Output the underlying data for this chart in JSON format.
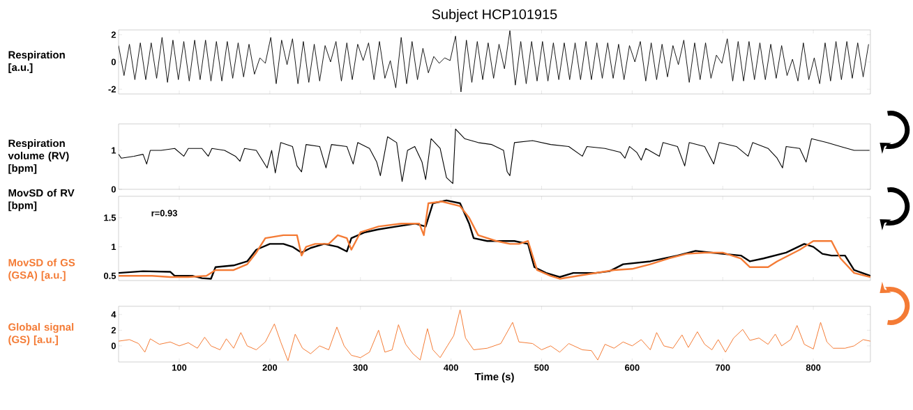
{
  "chart_data": [
    {
      "type": "line",
      "title": "Subject HCP101915",
      "ylabel": "Respiration [a.u.]",
      "color": "#000000",
      "x": [
        33,
        39,
        45,
        51,
        57,
        63,
        69,
        75,
        81,
        87,
        93,
        99,
        105,
        111,
        117,
        123,
        129,
        135,
        141,
        147,
        153,
        159,
        165,
        171,
        177,
        183,
        189,
        195,
        201,
        207,
        213,
        219,
        225,
        231,
        237,
        243,
        249,
        255,
        261,
        267,
        273,
        279,
        285,
        291,
        297,
        303,
        309,
        315,
        321,
        327,
        333,
        339,
        345,
        351,
        357,
        363,
        369,
        375,
        381,
        387,
        393,
        399,
        405,
        411,
        417,
        423,
        429,
        435,
        441,
        447,
        453,
        459,
        465,
        471,
        477,
        483,
        489,
        495,
        501,
        507,
        513,
        519,
        525,
        531,
        537,
        543,
        549,
        555,
        561,
        567,
        573,
        579,
        585,
        591,
        597,
        603,
        609,
        615,
        621,
        627,
        633,
        639,
        645,
        651,
        657,
        663,
        669,
        675,
        681,
        687,
        693,
        699,
        705,
        711,
        717,
        723,
        729,
        735,
        741,
        747,
        753,
        759,
        765,
        771,
        777,
        783,
        789,
        795,
        801,
        807,
        813,
        819,
        825,
        831,
        837,
        843,
        849,
        855,
        861
      ],
      "values": [
        1.2,
        -1.0,
        1.3,
        -1.3,
        1.4,
        -1.3,
        1.4,
        -1.2,
        1.8,
        -1.5,
        1.6,
        -1.3,
        1.5,
        -1.4,
        1.6,
        -1.3,
        1.6,
        -1.4,
        1.5,
        -1.4,
        1.5,
        -1.2,
        1.4,
        -1.1,
        1.3,
        -0.9,
        0.3,
        -0.1,
        1.8,
        -1.6,
        1.6,
        -0.2,
        1.7,
        -1.6,
        1.5,
        -1.5,
        1.3,
        -1.4,
        1.2,
        0.0,
        1.5,
        -1.4,
        1.4,
        -1.3,
        1.3,
        0.1,
        1.4,
        -1.3,
        1.5,
        -1.2,
        0.1,
        -1.9,
        1.8,
        -1.6,
        1.5,
        -1.3,
        1.0,
        -0.8,
        0.4,
        -0.1,
        0.3,
        0.1,
        1.9,
        -2.2,
        1.6,
        -1.5,
        1.5,
        -1.3,
        1.4,
        -1.2,
        1.3,
        -0.5,
        2.3,
        -1.7,
        1.5,
        -1.6,
        1.5,
        -1.4,
        1.5,
        -1.4,
        1.4,
        -1.3,
        1.4,
        -1.3,
        1.4,
        -1.3,
        1.5,
        -1.3,
        1.4,
        -1.2,
        1.4,
        -1.2,
        1.3,
        -1.3,
        1.2,
        0.0,
        1.5,
        -1.4,
        1.4,
        -1.3,
        1.3,
        -1.1,
        1.2,
        -0.2,
        1.6,
        -1.5,
        1.4,
        -1.3,
        1.4,
        -1.2,
        0.5,
        -0.1,
        1.7,
        -1.4,
        1.5,
        -1.4,
        1.5,
        -1.3,
        1.4,
        -1.3,
        1.3,
        -1.2,
        1.2,
        -1.0,
        0.2,
        -1.4,
        1.4,
        -1.3,
        0.3,
        -1.6,
        1.4,
        -1.4,
        1.5,
        -1.3,
        1.5,
        -1.2,
        1.4,
        -1.1,
        1.3
      ],
      "xlim": [
        33,
        863
      ],
      "ylim": [
        -2.35,
        2.35
      ],
      "xticks": [
        100,
        200,
        300,
        400,
        500,
        600,
        700,
        800
      ],
      "yticks": [
        -2,
        0,
        2
      ],
      "tick_labels": "y"
    },
    {
      "type": "line",
      "ylabel": "Respiration volume (RV) [bpm]",
      "color": "#000000",
      "x": [
        33,
        36,
        50,
        60,
        64,
        68,
        80,
        95,
        105,
        110,
        125,
        132,
        136,
        150,
        162,
        167,
        172,
        185,
        197,
        202,
        206,
        212,
        225,
        230,
        235,
        240,
        255,
        262,
        268,
        285,
        292,
        297,
        310,
        318,
        322,
        330,
        340,
        346,
        352,
        360,
        368,
        372,
        378,
        388,
        395,
        402,
        405,
        415,
        430,
        445,
        458,
        462,
        465,
        470,
        490,
        510,
        530,
        545,
        550,
        570,
        587,
        592,
        597,
        605,
        610,
        615,
        630,
        634,
        650,
        658,
        663,
        680,
        690,
        696,
        715,
        728,
        733,
        750,
        760,
        766,
        770,
        785,
        792,
        798,
        815,
        830,
        845,
        862
      ],
      "values": [
        0.9,
        0.8,
        0.85,
        0.9,
        0.65,
        1.0,
        1.0,
        1.05,
        0.85,
        1.05,
        1.05,
        0.85,
        1.05,
        1.0,
        0.85,
        0.72,
        1.05,
        1.0,
        0.55,
        1.0,
        0.42,
        1.2,
        1.1,
        0.6,
        0.45,
        1.15,
        1.1,
        0.55,
        1.15,
        1.1,
        0.65,
        1.2,
        1.05,
        0.7,
        0.35,
        1.35,
        1.2,
        0.2,
        1.0,
        1.1,
        0.7,
        0.25,
        1.3,
        1.05,
        0.3,
        0.15,
        1.55,
        1.3,
        1.2,
        1.15,
        1.0,
        0.45,
        0.35,
        1.2,
        1.25,
        1.15,
        1.1,
        0.85,
        1.1,
        1.05,
        0.95,
        0.8,
        1.1,
        0.95,
        0.75,
        1.05,
        0.85,
        1.2,
        1.1,
        0.6,
        1.2,
        1.1,
        0.65,
        1.2,
        1.1,
        0.85,
        1.2,
        1.05,
        0.8,
        0.55,
        1.1,
        1.05,
        0.7,
        1.3,
        1.2,
        1.1,
        1.0,
        1.0
      ],
      "xlim": [
        33,
        863
      ],
      "ylim": [
        0,
        1.68
      ],
      "xticks": [
        100,
        200,
        300,
        400,
        500,
        600,
        700,
        800
      ],
      "yticks": [
        0,
        1
      ],
      "tick_labels": "y"
    },
    {
      "type": "line",
      "annotations": [
        "r=0.93"
      ],
      "series": [
        {
          "name": "MovSD of RV [bpm]",
          "color": "#000000",
          "x": [
            33,
            60,
            90,
            95,
            115,
            125,
            135,
            140,
            160,
            175,
            185,
            200,
            215,
            225,
            235,
            245,
            260,
            275,
            285,
            290,
            305,
            320,
            340,
            360,
            372,
            380,
            395,
            410,
            420,
            425,
            440,
            470,
            485,
            492,
            505,
            520,
            535,
            560,
            575,
            590,
            620,
            650,
            670,
            700,
            720,
            730,
            745,
            770,
            790,
            800,
            810,
            820,
            835,
            845,
            863
          ],
          "values": [
            0.55,
            0.58,
            0.57,
            0.5,
            0.5,
            0.46,
            0.45,
            0.65,
            0.68,
            0.75,
            0.95,
            1.05,
            1.05,
            1.0,
            0.9,
            0.98,
            1.05,
            1.0,
            0.92,
            1.15,
            1.25,
            1.3,
            1.35,
            1.4,
            1.35,
            1.75,
            1.8,
            1.75,
            1.4,
            1.15,
            1.1,
            1.1,
            1.05,
            0.65,
            0.55,
            0.48,
            0.55,
            0.55,
            0.58,
            0.7,
            0.75,
            0.85,
            0.93,
            0.88,
            0.85,
            0.75,
            0.8,
            0.9,
            1.05,
            1.0,
            0.88,
            0.85,
            0.85,
            0.6,
            0.5
          ]
        },
        {
          "name": "MovSD of GS (GSA) [a.u.]",
          "color": "#f47b35",
          "x": [
            33,
            70,
            90,
            110,
            130,
            140,
            160,
            175,
            185,
            195,
            215,
            230,
            235,
            240,
            250,
            265,
            275,
            285,
            290,
            300,
            320,
            345,
            365,
            370,
            375,
            390,
            410,
            420,
            430,
            450,
            465,
            475,
            485,
            495,
            510,
            520,
            540,
            560,
            580,
            600,
            620,
            640,
            660,
            680,
            700,
            720,
            730,
            750,
            760,
            785,
            800,
            820,
            830,
            845,
            863
          ],
          "values": [
            0.5,
            0.5,
            0.48,
            0.48,
            0.5,
            0.6,
            0.6,
            0.7,
            0.9,
            1.15,
            1.2,
            1.2,
            0.85,
            1.0,
            1.05,
            1.05,
            1.2,
            1.15,
            0.95,
            1.25,
            1.35,
            1.4,
            1.4,
            1.2,
            1.75,
            1.78,
            1.7,
            1.5,
            1.2,
            1.1,
            1.05,
            1.05,
            1.1,
            0.6,
            0.5,
            0.45,
            0.5,
            0.55,
            0.6,
            0.62,
            0.7,
            0.8,
            0.88,
            0.9,
            0.9,
            0.8,
            0.65,
            0.65,
            0.75,
            0.95,
            1.1,
            1.1,
            0.8,
            0.55,
            0.48
          ]
        }
      ],
      "xlim": [
        33,
        863
      ],
      "ylim": [
        0.42,
        1.87
      ],
      "xticks": [
        100,
        200,
        300,
        400,
        500,
        600,
        700,
        800
      ],
      "yticks": [
        0.5,
        1,
        1.5
      ],
      "tick_labels": "y"
    },
    {
      "type": "line",
      "ylabel": "Global signal (GS) [a.u.]",
      "xlabel": "Time (s)",
      "color": "#f47b35",
      "x": [
        33,
        45,
        55,
        62,
        68,
        78,
        90,
        100,
        110,
        120,
        128,
        135,
        145,
        152,
        160,
        168,
        175,
        185,
        195,
        205,
        212,
        220,
        228,
        236,
        245,
        255,
        265,
        274,
        282,
        290,
        300,
        310,
        320,
        327,
        335,
        342,
        350,
        358,
        366,
        374,
        380,
        388,
        396,
        403,
        410,
        416,
        425,
        440,
        455,
        468,
        475,
        490,
        500,
        510,
        520,
        530,
        545,
        555,
        562,
        570,
        580,
        590,
        600,
        610,
        620,
        627,
        635,
        645,
        655,
        662,
        672,
        680,
        688,
        695,
        703,
        712,
        722,
        730,
        740,
        750,
        758,
        765,
        775,
        782,
        790,
        800,
        808,
        815,
        822,
        835,
        845,
        855,
        863
      ],
      "values": [
        0.6,
        0.8,
        0.3,
        -0.8,
        0.9,
        0.2,
        0.5,
        0.0,
        0.4,
        -0.3,
        1.1,
        0.0,
        -0.5,
        0.9,
        -0.3,
        1.7,
        0.0,
        -0.5,
        0.5,
        2.8,
        0.5,
        -1.9,
        1.5,
        -0.3,
        -1.0,
        0.0,
        -0.5,
        2.4,
        0.0,
        -1.2,
        -1.5,
        -0.8,
        2.0,
        -0.8,
        -0.5,
        2.7,
        0.2,
        -1.0,
        -1.8,
        2.2,
        -0.5,
        -1.5,
        0.0,
        1.3,
        4.6,
        1.0,
        -0.5,
        -0.3,
        0.3,
        3.0,
        0.5,
        0.3,
        -0.5,
        0.0,
        -0.8,
        0.3,
        -0.5,
        -0.6,
        -1.8,
        0.2,
        -0.3,
        0.5,
        0.0,
        0.8,
        -0.5,
        1.7,
        0.0,
        -0.3,
        1.4,
        -0.2,
        1.8,
        0.2,
        -0.5,
        0.8,
        -0.8,
        1.0,
        2.1,
        0.7,
        1.0,
        0.2,
        1.5,
        0.0,
        0.8,
        2.6,
        0.2,
        -0.4,
        3.0,
        0.5,
        -0.3,
        -0.3,
        0.0,
        0.8,
        0.6
      ],
      "xlim": [
        33,
        863
      ],
      "ylim": [
        -2.05,
        5.05
      ],
      "xticks": [
        100,
        200,
        300,
        400,
        500,
        600,
        700,
        800
      ],
      "yticks": [
        0,
        2,
        4
      ]
    }
  ]
}
